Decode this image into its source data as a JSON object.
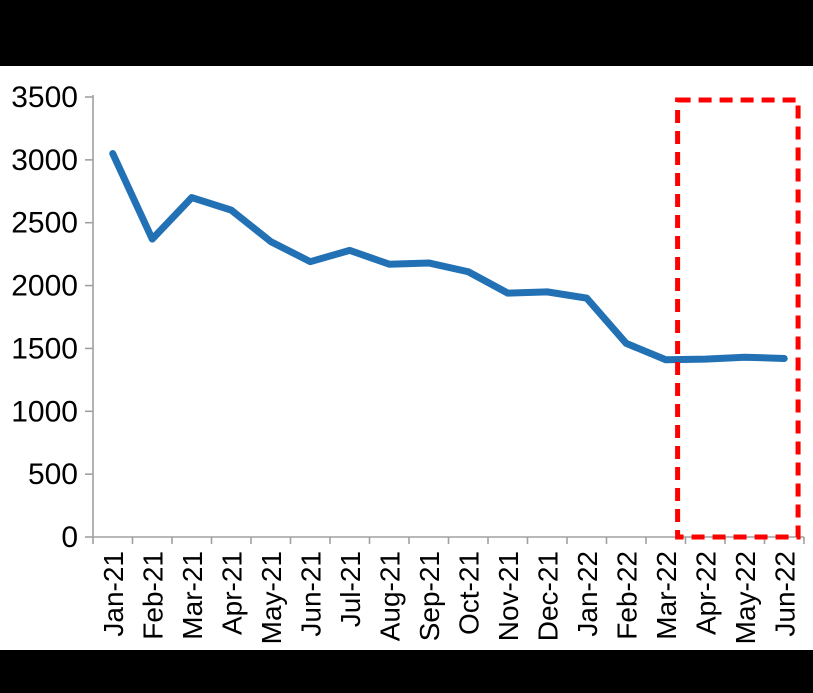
{
  "frame": {
    "letterbox_color": "#000000",
    "background_color": "#ffffff"
  },
  "chart_data": {
    "type": "line",
    "title": "",
    "xlabel": "",
    "ylabel": "",
    "categories": [
      "Jan-21",
      "Feb-21",
      "Mar-21",
      "Apr-21",
      "May-21",
      "Jun-21",
      "Jul-21",
      "Aug-21",
      "Sep-21",
      "Oct-21",
      "Nov-21",
      "Dec-21",
      "Jan-22",
      "Feb-22",
      "Mar-22",
      "Apr-22",
      "May-22",
      "Jun-22"
    ],
    "values": [
      3050,
      2370,
      2700,
      2600,
      2350,
      2190,
      2280,
      2170,
      2180,
      2110,
      1940,
      1950,
      1900,
      1540,
      1410,
      1415,
      1430,
      1420
    ],
    "series_color": "#2271B5",
    "ylim": [
      0,
      3500
    ],
    "y_ticks": [
      0,
      500,
      1000,
      1500,
      2000,
      2500,
      3000,
      3500
    ],
    "y_tick_labels": [
      "0",
      "500",
      "1000",
      "1500",
      "2000",
      "2500",
      "3000",
      "3500"
    ],
    "axis_color": "#A0A0A0",
    "text_color": "#000000",
    "grid": false,
    "legend": false,
    "x_labels_rotated_degrees": 90,
    "highlight": {
      "style": "dashed-box",
      "color": "#FF0000",
      "from_category": "Apr-22",
      "to_category": "Jun-22"
    }
  }
}
